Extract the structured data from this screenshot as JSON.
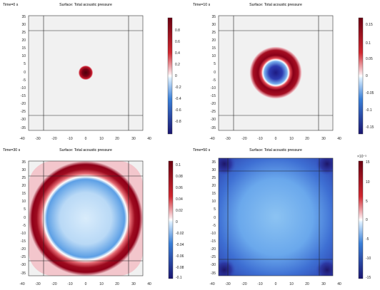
{
  "panels": [
    {
      "time_label": "Time=0 s",
      "surface_title": "Surface: Total acoustic pressure",
      "colorbar": {
        "exponent": "",
        "tick_labels": [
          "0.8",
          "0.6",
          "0.4",
          "0.2",
          "0",
          "-0.2",
          "-0.4",
          "-0.6",
          "-0.8"
        ]
      }
    },
    {
      "time_label": "Time=10 s",
      "surface_title": "Surface: Total acoustic pressure",
      "colorbar": {
        "exponent": "",
        "tick_labels": [
          "0.15",
          "0.1",
          "0.05",
          "0",
          "-0.05",
          "-0.1",
          "-0.15"
        ]
      }
    },
    {
      "time_label": "Time=30 s",
      "surface_title": "Surface: Total acoustic pressure",
      "colorbar": {
        "exponent": "",
        "tick_labels": [
          "0.1",
          "0.08",
          "0.06",
          "0.04",
          "0.02",
          "0",
          "-0.02",
          "-0.04",
          "-0.06",
          "-0.08",
          "-0.1"
        ]
      }
    },
    {
      "time_label": "Time=50 s",
      "surface_title": "Surface: Total acoustic pressure",
      "colorbar": {
        "exponent": "×10⁻³",
        "tick_labels": [
          "15",
          "10",
          "5",
          "0",
          "-5",
          "-10",
          "-15"
        ]
      }
    }
  ],
  "axes": {
    "x_tick_labels": [
      "-40",
      "-30",
      "-20",
      "-10",
      "0",
      "10",
      "20",
      "30",
      "40"
    ],
    "y_tick_labels": [
      "35",
      "30",
      "25",
      "20",
      "15",
      "10",
      "5",
      "0",
      "-5",
      "-10",
      "-15",
      "-20",
      "-25",
      "-30",
      "-35"
    ]
  },
  "colors": {
    "positive": "#6b0010",
    "negative": "#1a1570",
    "neutral": "#f0f0f0"
  }
}
